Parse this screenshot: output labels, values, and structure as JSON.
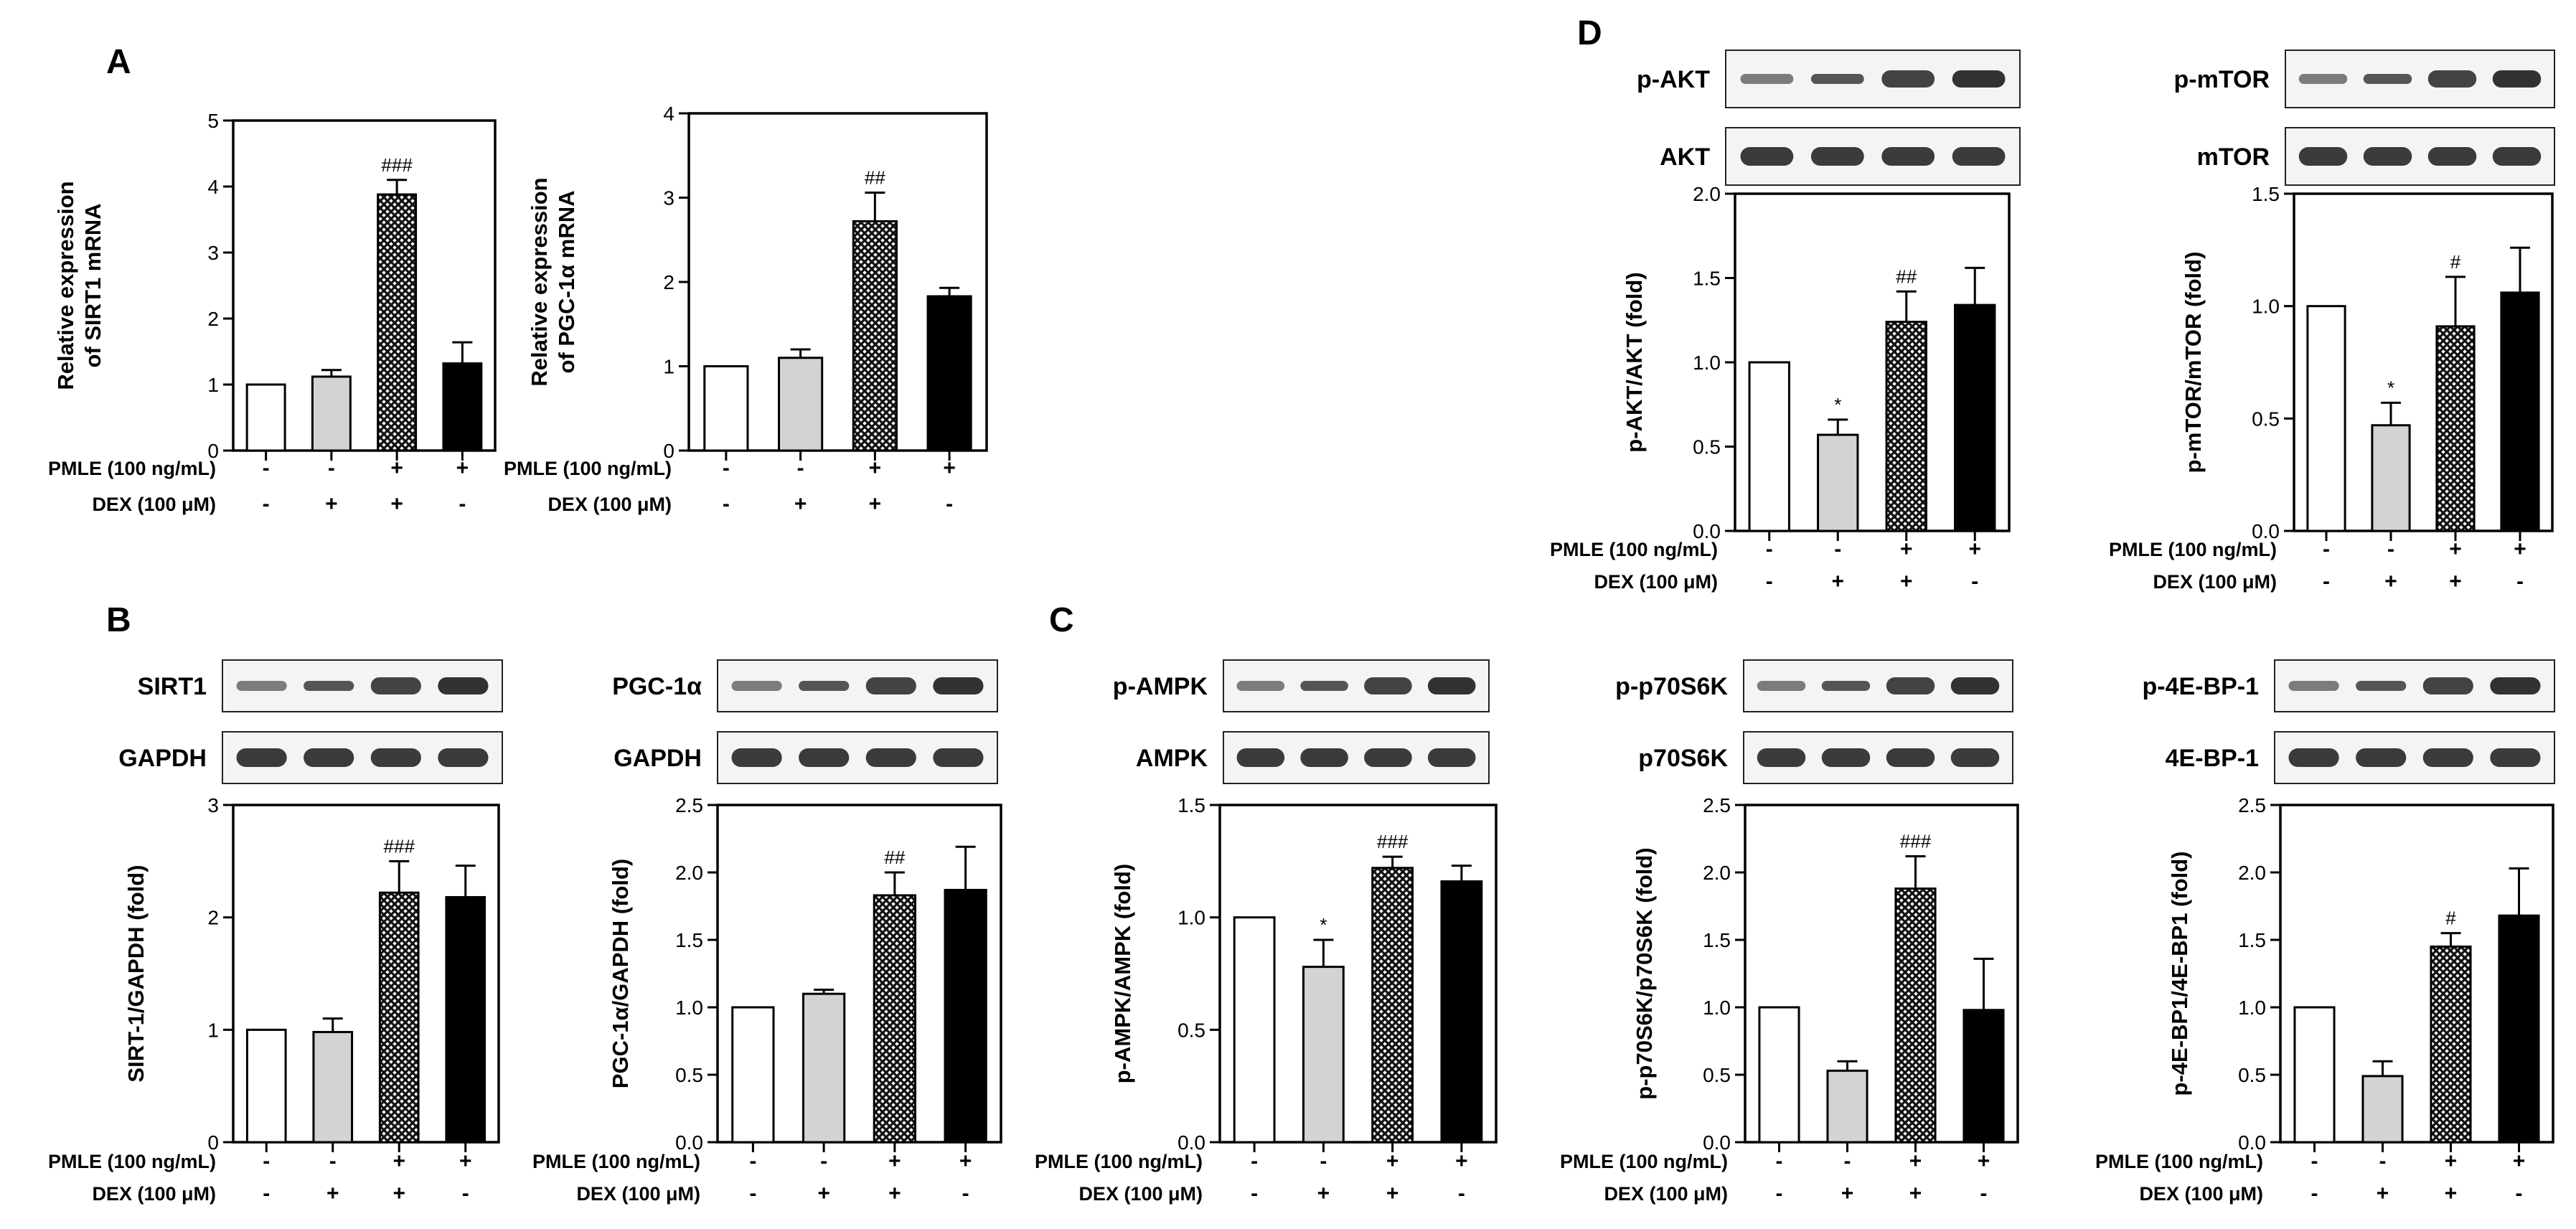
{
  "panel_letters": [
    "A",
    "B",
    "C",
    "D"
  ],
  "treatment_rows": [
    {
      "label": "PMLE (100 ng/mL)",
      "signs": [
        "-",
        "-",
        "+",
        "+"
      ]
    },
    {
      "label": "DEX (100 μM)",
      "signs": [
        "-",
        "+",
        "+",
        "-"
      ]
    }
  ],
  "colors": {
    "control": "#ffffff",
    "dex": "#d3d3d3",
    "pmle_dex": "#8c8c8c",
    "pmle": "#000000"
  },
  "blots": [
    {
      "panel": "B",
      "chart": 2,
      "top_label": "SIRT1",
      "bottom_label": "GAPDH"
    },
    {
      "panel": "B",
      "chart": 3,
      "top_label": "PGC-1α",
      "bottom_label": "GAPDH"
    },
    {
      "panel": "C",
      "chart": 4,
      "top_label": "p-AMPK",
      "bottom_label": "AMPK"
    },
    {
      "panel": "C",
      "chart": 5,
      "top_label": "p-p70S6K",
      "bottom_label": "p70S6K"
    },
    {
      "panel": "C",
      "chart": 6,
      "top_label": "p-4E-BP-1",
      "bottom_label": "4E-BP-1"
    },
    {
      "panel": "D",
      "chart": 7,
      "top_label": "p-AKT",
      "bottom_label": "AKT"
    },
    {
      "panel": "D",
      "chart": 8,
      "top_label": "p-mTOR",
      "bottom_label": "mTOR"
    }
  ],
  "chart_data": [
    {
      "panel": "A",
      "type": "bar",
      "ylabel_lines": [
        "Relative expression",
        "of SIRT1 mRNA"
      ],
      "ylim": [
        0,
        5
      ],
      "yticks": [
        "0",
        "1",
        "2",
        "3",
        "4",
        "5"
      ],
      "values": [
        1.0,
        1.12,
        3.88,
        1.32
      ],
      "errors": [
        0,
        0.1,
        0.22,
        0.32
      ],
      "annotations": [
        "",
        "",
        "###",
        ""
      ]
    },
    {
      "panel": "A",
      "type": "bar",
      "ylabel_lines": [
        "Relative expression",
        "of PGC-1α mRNA"
      ],
      "ylim": [
        0,
        4
      ],
      "yticks": [
        "0",
        "1",
        "2",
        "3",
        "4"
      ],
      "values": [
        1.0,
        1.1,
        2.72,
        1.83
      ],
      "errors": [
        0,
        0.1,
        0.34,
        0.1
      ],
      "annotations": [
        "",
        "",
        "##",
        ""
      ]
    },
    {
      "panel": "B",
      "type": "bar",
      "ylabel_lines": [
        "SIRT-1/GAPDH (fold)"
      ],
      "ylim": [
        0,
        3
      ],
      "yticks": [
        "0",
        "1",
        "2",
        "3"
      ],
      "values": [
        1.0,
        0.98,
        2.22,
        2.18
      ],
      "errors": [
        0,
        0.12,
        0.28,
        0.28
      ],
      "annotations": [
        "",
        "",
        "###",
        ""
      ]
    },
    {
      "panel": "B",
      "type": "bar",
      "ylabel_lines": [
        "PGC-1α/GAPDH (fold)"
      ],
      "ylim": [
        0,
        2.5
      ],
      "yticks": [
        "0.0",
        "0.5",
        "1.0",
        "1.5",
        "2.0",
        "2.5"
      ],
      "values": [
        1.0,
        1.1,
        1.83,
        1.87
      ],
      "errors": [
        0,
        0.03,
        0.17,
        0.32
      ],
      "annotations": [
        "",
        "",
        "##",
        ""
      ]
    },
    {
      "panel": "C",
      "type": "bar",
      "ylabel_lines": [
        "p-AMPK/AMPK (fold)"
      ],
      "ylim": [
        0,
        1.5
      ],
      "yticks": [
        "0.0",
        "0.5",
        "1.0",
        "1.5"
      ],
      "values": [
        1.0,
        0.78,
        1.22,
        1.16
      ],
      "errors": [
        0,
        0.12,
        0.05,
        0.07
      ],
      "annotations": [
        "",
        "*",
        "###",
        ""
      ]
    },
    {
      "panel": "C",
      "type": "bar",
      "ylabel_lines": [
        "p-p70S6K/p70S6K (fold)"
      ],
      "ylim": [
        0,
        2.5
      ],
      "yticks": [
        "0.0",
        "0.5",
        "1.0",
        "1.5",
        "2.0",
        "2.5"
      ],
      "values": [
        1.0,
        0.53,
        1.88,
        0.98
      ],
      "errors": [
        0,
        0.07,
        0.24,
        0.38
      ],
      "annotations": [
        "",
        "",
        "###",
        ""
      ]
    },
    {
      "panel": "C",
      "type": "bar",
      "ylabel_lines": [
        "p-4E-BP1/4E-BP1 (fold)"
      ],
      "ylim": [
        0,
        2.5
      ],
      "yticks": [
        "0.0",
        "0.5",
        "1.0",
        "1.5",
        "2.0",
        "2.5"
      ],
      "values": [
        1.0,
        0.49,
        1.45,
        1.68
      ],
      "errors": [
        0,
        0.11,
        0.1,
        0.35
      ],
      "annotations": [
        "",
        "",
        "#",
        ""
      ]
    },
    {
      "panel": "D",
      "type": "bar",
      "ylabel_lines": [
        "p-AKT/AKT (fold)"
      ],
      "ylim": [
        0,
        2.0
      ],
      "yticks": [
        "0.0",
        "0.5",
        "1.0",
        "1.5",
        "2.0"
      ],
      "values": [
        1.0,
        0.57,
        1.24,
        1.34
      ],
      "errors": [
        0,
        0.09,
        0.18,
        0.22
      ],
      "annotations": [
        "",
        "*",
        "##",
        ""
      ]
    },
    {
      "panel": "D",
      "type": "bar",
      "ylabel_lines": [
        "p-mTOR/mTOR (fold)"
      ],
      "ylim": [
        0,
        1.5
      ],
      "yticks": [
        "0.0",
        "0.5",
        "1.0",
        "1.5"
      ],
      "values": [
        1.0,
        0.47,
        0.91,
        1.06
      ],
      "errors": [
        0,
        0.1,
        0.22,
        0.2
      ],
      "annotations": [
        "",
        "*",
        "#",
        ""
      ]
    }
  ]
}
